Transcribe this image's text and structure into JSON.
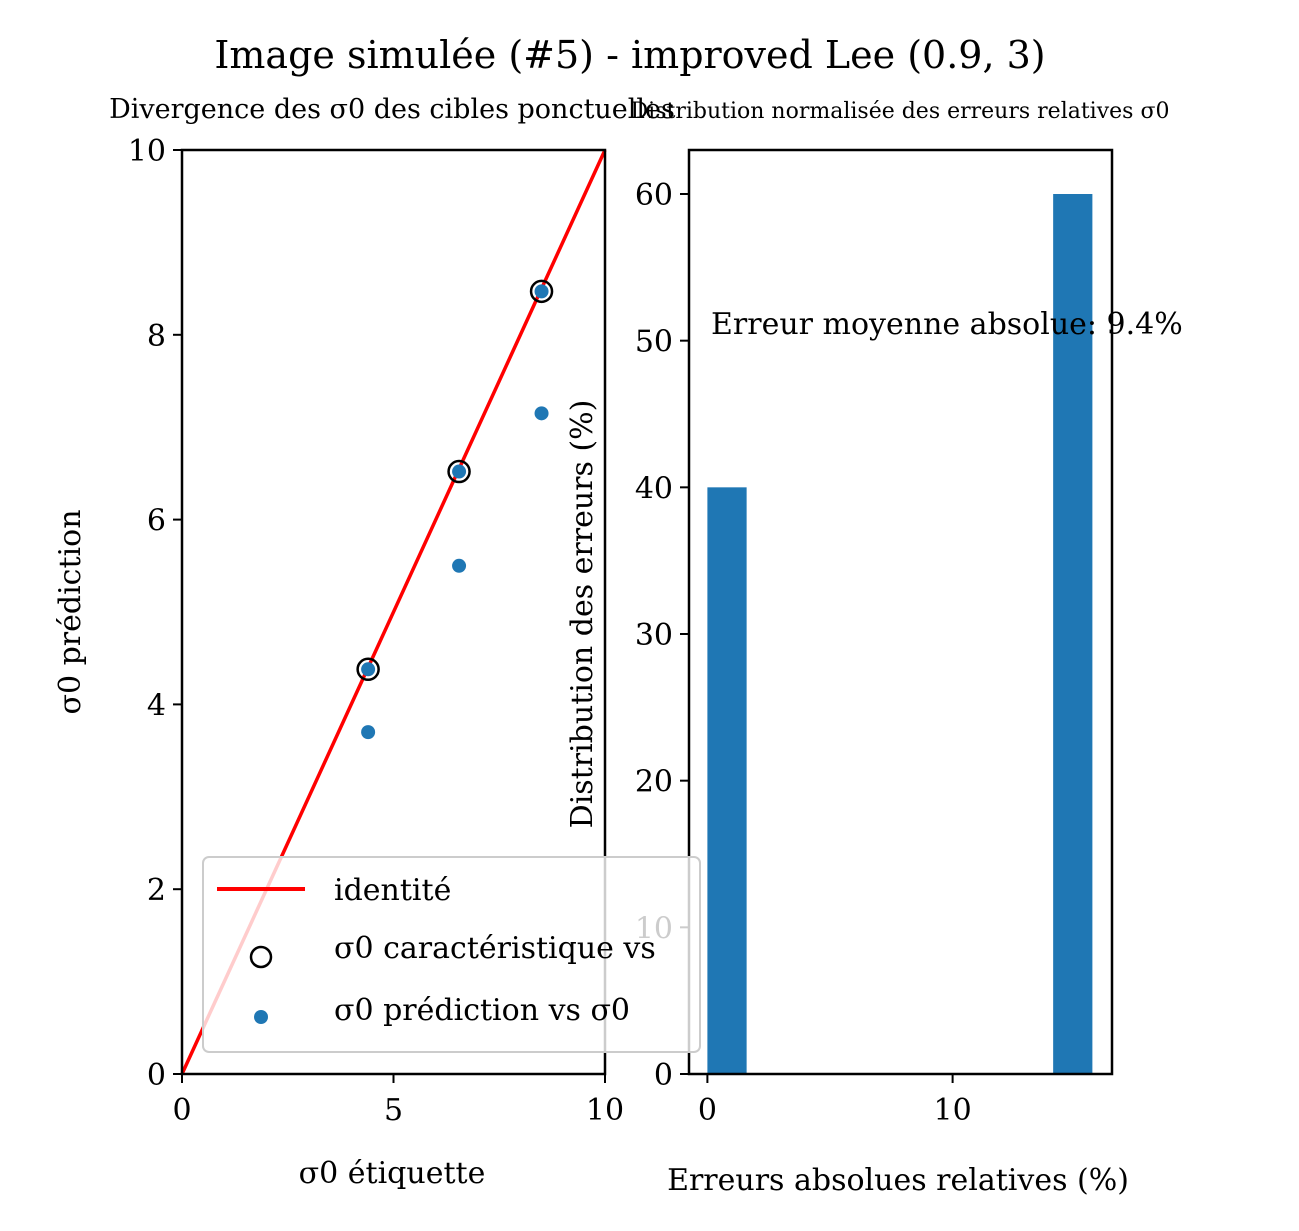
{
  "suptitle": "Image simulée (#5) - improved Lee (0.9, 3)",
  "chart_data": [
    {
      "type": "scatter",
      "title": "Divergence des σ0 des cibles ponctuelles",
      "xlabel": "σ0 étiquette",
      "ylabel": "σ0 prédiction",
      "xlim": [
        0,
        10
      ],
      "ylim": [
        0,
        10
      ],
      "xticks": [
        0,
        5,
        10
      ],
      "yticks": [
        0,
        2,
        4,
        6,
        8,
        10
      ],
      "grid": false,
      "legend_position": "lower-left",
      "identity_line": {
        "name": "identité",
        "color": "#ff0000",
        "x": [
          0,
          10
        ],
        "y": [
          0,
          10
        ]
      },
      "series": [
        {
          "name": "σ0 caractéristique vs",
          "marker": "open-circle",
          "color": "#000000",
          "x": [
            4.4,
            6.55,
            8.5
          ],
          "y": [
            4.38,
            6.52,
            8.47
          ]
        },
        {
          "name": "σ0 prédiction vs σ0",
          "marker": "filled-dot",
          "color": "#1f77b4",
          "x": [
            4.4,
            6.55,
            8.5
          ],
          "y": [
            3.7,
            5.5,
            7.15
          ]
        }
      ]
    },
    {
      "type": "bar",
      "title": "Distribution normalisée des erreurs relatives σ0",
      "xlabel": "Erreurs absolues relatives (%)",
      "ylabel": "Distribution des erreurs (%)",
      "xlim": [
        -0.75,
        16.5
      ],
      "ylim": [
        0,
        63
      ],
      "xticks": [
        0,
        10
      ],
      "yticks": [
        0,
        10,
        20,
        30,
        40,
        50,
        60
      ],
      "color": "#1f77b4",
      "bins": [
        {
          "x0": 0.0,
          "x1": 1.6,
          "value": 40
        },
        {
          "x0": 14.1,
          "x1": 15.7,
          "value": 60
        }
      ],
      "annotation": "Erreur moyenne absolue: 9.4%"
    }
  ]
}
